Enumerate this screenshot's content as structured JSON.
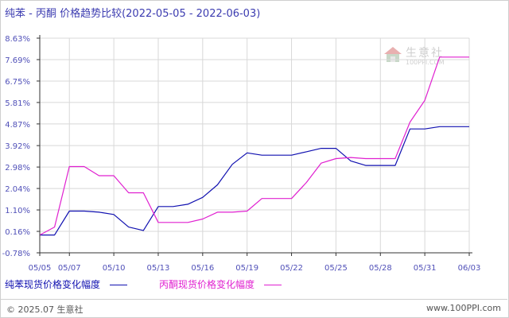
{
  "title": "纯苯 - 丙酮 价格趋势比较(2022-05-05 - 2022-06-03)",
  "watermark": {
    "brand": "生意社",
    "url": "100PPI.COM"
  },
  "footer": {
    "copyright": "© 2025.07 生意社",
    "site": "www.100PPI.com"
  },
  "colors": {
    "series1": "#1010b0",
    "series2": "#e020d0",
    "grid": "#d8d8d8",
    "axis": "#333333",
    "tick": "#5050b8"
  },
  "chart_data": {
    "type": "line",
    "xlabel": "",
    "ylabel": "",
    "ylim": [
      -0.78,
      8.63
    ],
    "yticks": [
      "8.63%",
      "7.69%",
      "6.75%",
      "5.81%",
      "4.87%",
      "3.92%",
      "2.98%",
      "2.04%",
      "1.10%",
      "0.16%",
      "-0.78%"
    ],
    "ytick_values": [
      8.63,
      7.69,
      6.75,
      5.81,
      4.87,
      3.92,
      2.98,
      2.04,
      1.1,
      0.16,
      -0.78
    ],
    "xticks": [
      "05/05",
      "05/07",
      "05/10",
      "05/13",
      "05/16",
      "05/19",
      "05/22",
      "05/25",
      "05/28",
      "05/31",
      "06/03"
    ],
    "xtick_days": [
      0,
      2,
      5,
      8,
      11,
      14,
      17,
      20,
      23,
      26,
      29
    ],
    "grid": true,
    "legend_position": "bottom",
    "series": [
      {
        "name": "纯苯现货价格变化幅度",
        "points": [
          [
            0,
            0
          ],
          [
            1,
            0
          ],
          [
            2,
            1.05
          ],
          [
            3,
            1.05
          ],
          [
            4,
            1.0
          ],
          [
            5,
            0.9
          ],
          [
            6,
            0.35
          ],
          [
            7,
            0.2
          ],
          [
            8,
            1.25
          ],
          [
            9,
            1.25
          ],
          [
            10,
            1.35
          ],
          [
            11,
            1.65
          ],
          [
            12,
            2.2
          ],
          [
            13,
            3.1
          ],
          [
            14,
            3.6
          ],
          [
            15,
            3.5
          ],
          [
            16,
            3.5
          ],
          [
            17,
            3.5
          ],
          [
            18,
            3.65
          ],
          [
            19,
            3.8
          ],
          [
            20,
            3.8
          ],
          [
            21,
            3.25
          ],
          [
            22,
            3.05
          ],
          [
            23,
            3.05
          ],
          [
            24,
            3.05
          ],
          [
            25,
            4.65
          ],
          [
            26,
            4.65
          ],
          [
            27,
            4.75
          ],
          [
            28,
            4.75
          ],
          [
            29,
            4.75
          ]
        ]
      },
      {
        "name": "丙酮现货价格变化幅度",
        "points": [
          [
            0,
            0
          ],
          [
            1,
            0.35
          ],
          [
            2,
            3.0
          ],
          [
            3,
            3.0
          ],
          [
            4,
            2.6
          ],
          [
            5,
            2.6
          ],
          [
            6,
            1.85
          ],
          [
            7,
            1.85
          ],
          [
            8,
            0.55
          ],
          [
            9,
            0.55
          ],
          [
            10,
            0.55
          ],
          [
            11,
            0.7
          ],
          [
            12,
            1.0
          ],
          [
            13,
            1.0
          ],
          [
            14,
            1.05
          ],
          [
            15,
            1.6
          ],
          [
            16,
            1.6
          ],
          [
            17,
            1.6
          ],
          [
            18,
            2.3
          ],
          [
            19,
            3.15
          ],
          [
            20,
            3.35
          ],
          [
            21,
            3.4
          ],
          [
            22,
            3.35
          ],
          [
            23,
            3.35
          ],
          [
            24,
            3.35
          ],
          [
            25,
            4.95
          ],
          [
            26,
            5.9
          ],
          [
            27,
            7.8
          ],
          [
            28,
            7.8
          ],
          [
            29,
            7.8
          ]
        ]
      }
    ]
  }
}
